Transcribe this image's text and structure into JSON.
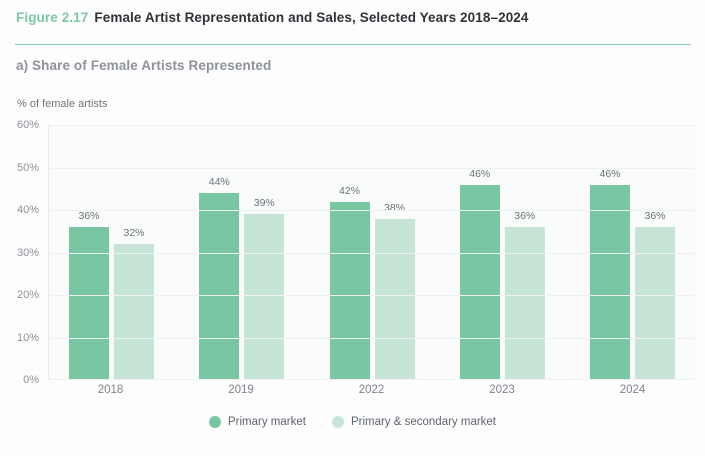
{
  "header": {
    "figure_label": "Figure 2.17",
    "title": "Female Artist Representation and Sales, Selected Years 2018–2024"
  },
  "section": {
    "subtitle": "a) Share of Female Artists Represented"
  },
  "chart_data": {
    "type": "bar",
    "title": "a) Share of Female Artists Represented",
    "ylabel": "% of female artists",
    "xlabel": "",
    "categories": [
      "2018",
      "2019",
      "2022",
      "2023",
      "2024"
    ],
    "series": [
      {
        "name": "Primary market",
        "color": "#79c6a3",
        "values": [
          36,
          44,
          42,
          46,
          46
        ]
      },
      {
        "name": "Primary & secondary market",
        "color": "#c6e5d6",
        "values": [
          32,
          39,
          38,
          36,
          36
        ]
      }
    ],
    "ylim": [
      0,
      60
    ],
    "ytick_step": 10,
    "ytick_labels": [
      "0%",
      "10%",
      "20%",
      "30%",
      "40%",
      "50%",
      "60%"
    ],
    "value_label_suffix": "%",
    "grid": true,
    "legend_position": "bottom"
  },
  "colors": {
    "accent_green": "#7cc8a4",
    "divider_green": "#86ceac",
    "title_text": "#2f3237",
    "subtitle_text": "#8e939b",
    "axis_text": "#8d9299",
    "value_text": "#6c727b",
    "gridline": "#f0f1f1",
    "plot_background": "#fafbfb"
  }
}
